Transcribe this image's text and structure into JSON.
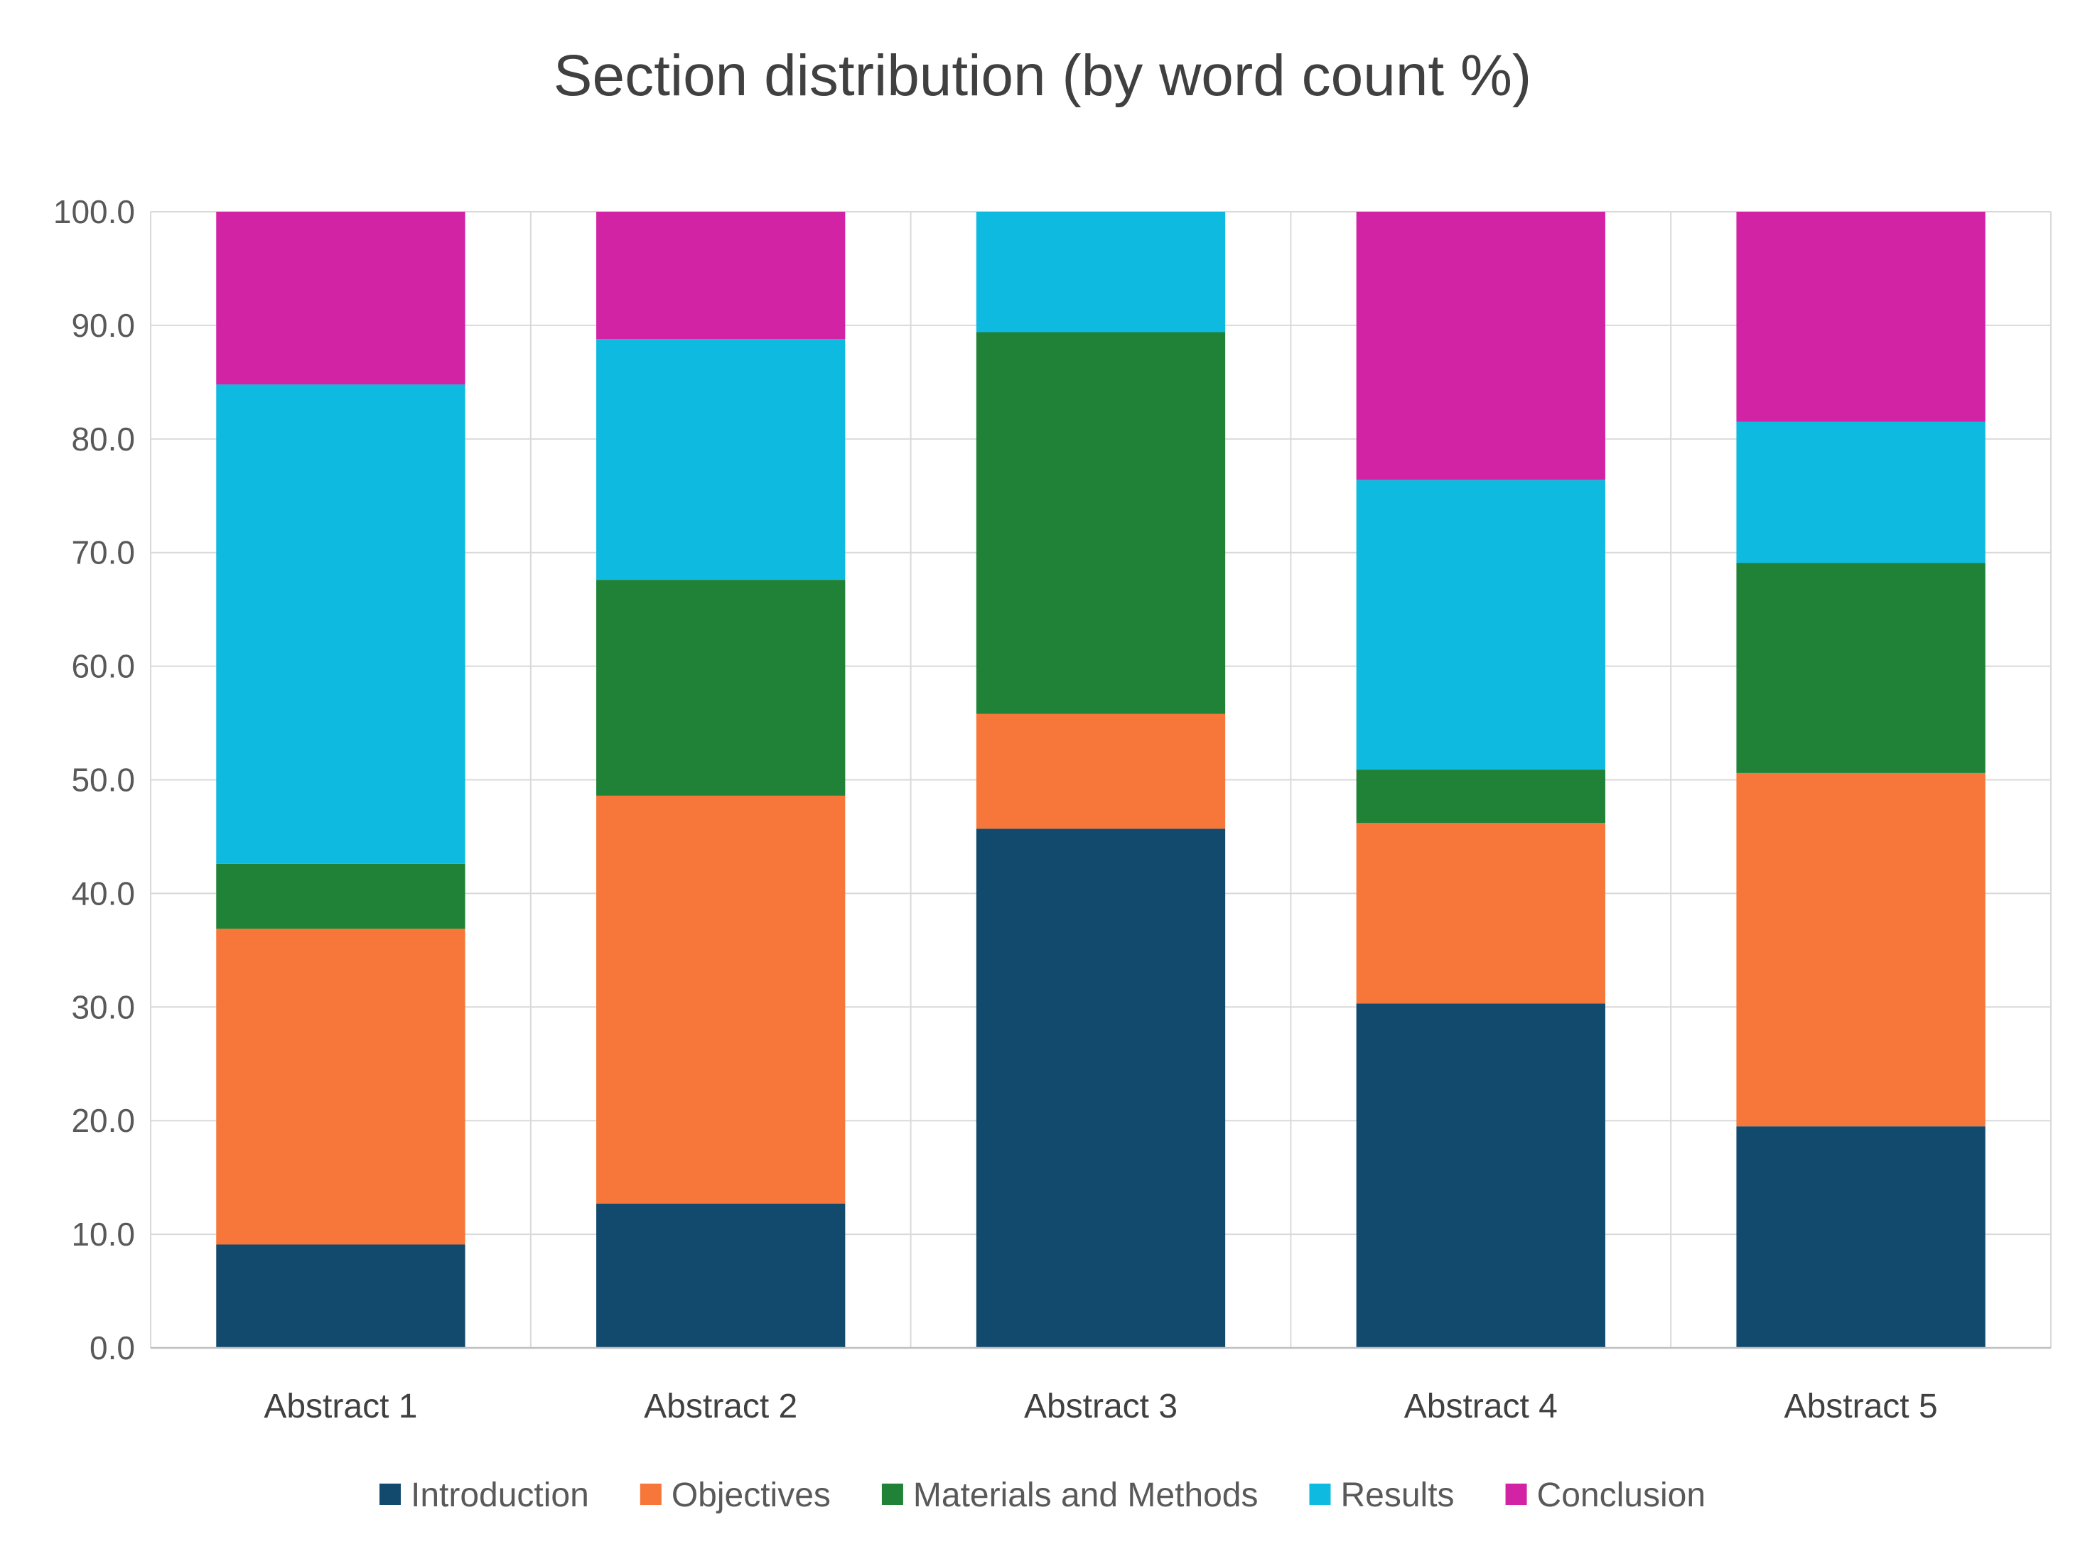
{
  "chart_data": {
    "type": "bar",
    "stacked": true,
    "title": "Section distribution (by word count %)",
    "xlabel": "",
    "ylabel": "",
    "ylim": [
      0,
      100
    ],
    "ytick_step": 10,
    "ytick_labels": [
      "0.0",
      "10.0",
      "20.0",
      "30.0",
      "40.0",
      "50.0",
      "60.0",
      "70.0",
      "80.0",
      "90.0",
      "100.0"
    ],
    "grid": true,
    "legend_position": "bottom",
    "categories": [
      "Abstract 1",
      "Abstract 2",
      "Abstract 3",
      "Abstract 4",
      "Abstract 5"
    ],
    "series": [
      {
        "name": "Introduction",
        "color": "#124A6E",
        "values": [
          9.1,
          12.7,
          45.7,
          30.3,
          19.5
        ]
      },
      {
        "name": "Objectives",
        "color": "#F77639",
        "values": [
          27.8,
          35.9,
          10.1,
          15.9,
          31.1
        ]
      },
      {
        "name": "Materials and Methods",
        "color": "#1F8236",
        "values": [
          5.7,
          19.0,
          33.6,
          4.7,
          18.5
        ]
      },
      {
        "name": "Results",
        "color": "#0EBADF",
        "values": [
          42.2,
          21.2,
          10.6,
          25.5,
          12.4
        ]
      },
      {
        "name": "Conclusion",
        "color": "#D323A5",
        "values": [
          15.2,
          11.2,
          0.0,
          23.6,
          18.5
        ]
      }
    ]
  }
}
